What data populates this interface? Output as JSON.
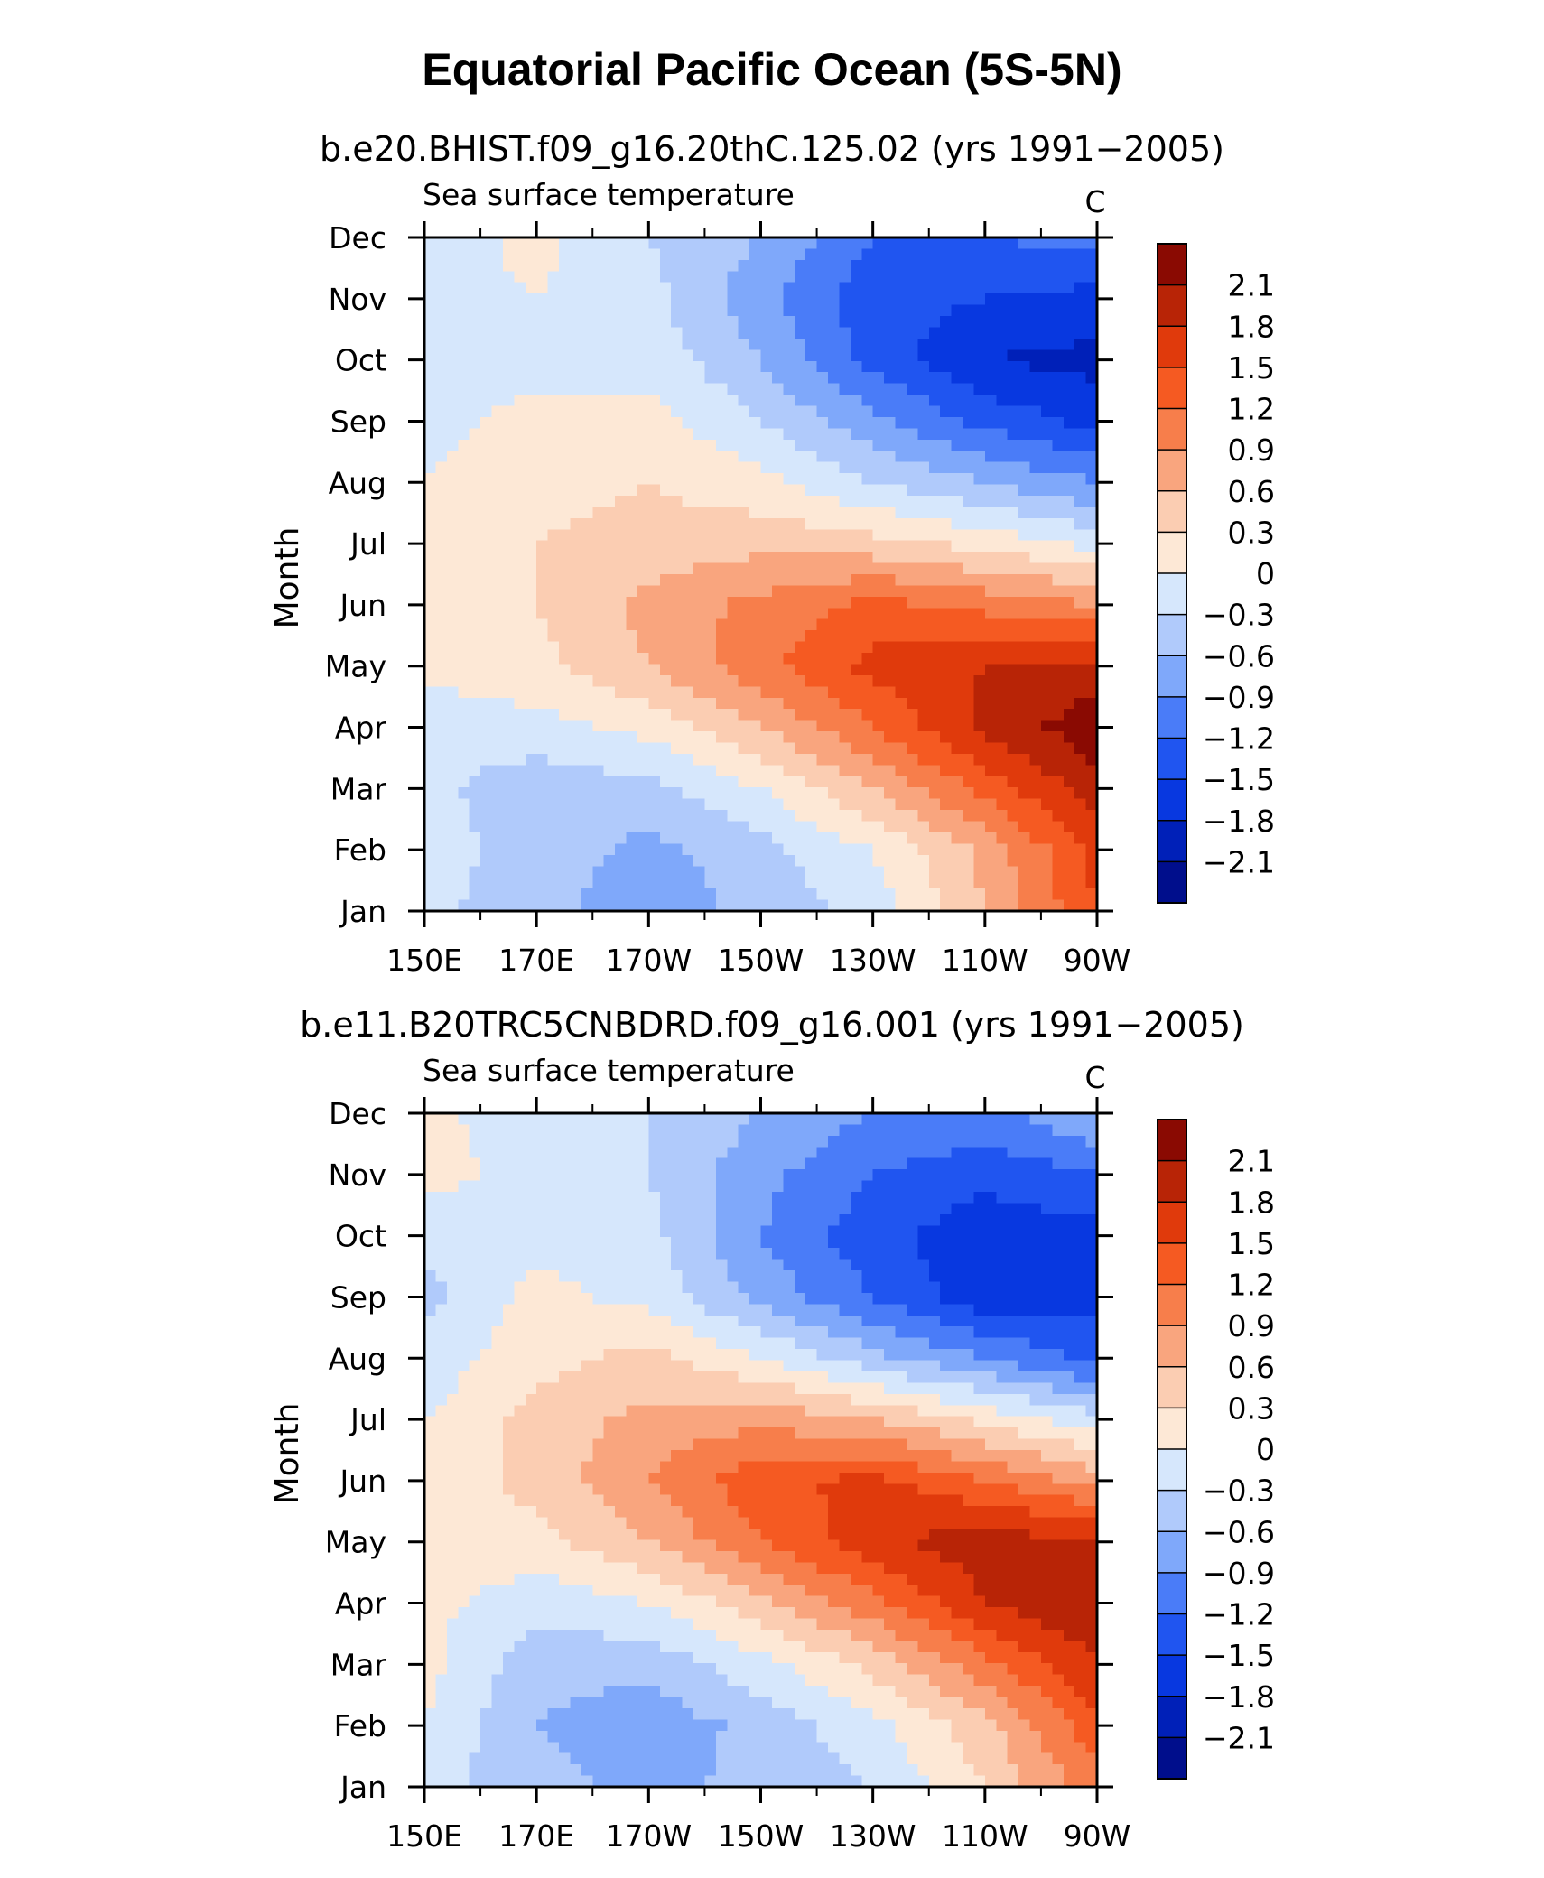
{
  "title": "Equatorial Pacific Ocean (5S-5N)",
  "colors": {
    "levels": [
      -2.4,
      -2.1,
      -1.8,
      -1.5,
      -1.2,
      -0.9,
      -0.6,
      -0.3,
      0,
      0.3,
      0.6,
      0.9,
      1.2,
      1.5,
      1.8,
      2.1,
      2.4
    ],
    "fills": [
      "#000e8c",
      "#0020b8",
      "#0838e0",
      "#2055f0",
      "#4a7cf8",
      "#7fa8fa",
      "#b0cafb",
      "#d6e7fc",
      "#fde8d6",
      "#fbcdb2",
      "#f9a57e",
      "#f77e4b",
      "#f55a22",
      "#e03a0c",
      "#b82406",
      "#8a0a02"
    ]
  },
  "chart_data": [
    {
      "type": "heatmap",
      "title": "b.e20.BHIST.f09_g16.20thC.125.02 (yrs 1991−2005)",
      "left_label": "Sea surface temperature",
      "units": "C",
      "ylabel": "Month",
      "xlabel": "",
      "x": [
        "150E",
        "170E",
        "170W",
        "150W",
        "130W",
        "110W",
        "90W"
      ],
      "y": [
        "Jan",
        "Feb",
        "Mar",
        "Apr",
        "May",
        "Jun",
        "Jul",
        "Aug",
        "Sep",
        "Oct",
        "Nov",
        "Dec"
      ],
      "colorbar_labels": [
        "2.1",
        "1.8",
        "1.5",
        "1.2",
        "0.9",
        "0.6",
        "0.3",
        "0",
        "−0.3",
        "−0.6",
        "−0.9",
        "−1.2",
        "−1.5",
        "−1.8",
        "−2.1"
      ],
      "values": [
        [
          -0.2,
          -0.5,
          -0.8,
          -0.5,
          -0.2,
          0.6,
          1.5
        ],
        [
          -0.2,
          -0.4,
          -0.7,
          -0.4,
          0.0,
          0.7,
          1.6
        ],
        [
          -0.2,
          -0.5,
          -0.4,
          0.0,
          0.6,
          1.3,
          2.0
        ],
        [
          -0.2,
          -0.1,
          0.1,
          0.6,
          1.2,
          1.9,
          2.3
        ],
        [
          0.1,
          0.2,
          0.6,
          1.1,
          1.6,
          1.8,
          1.9
        ],
        [
          0.2,
          0.3,
          0.7,
          1.0,
          1.3,
          1.1,
          0.9
        ],
        [
          0.1,
          0.3,
          0.4,
          0.5,
          0.4,
          0.2,
          -0.1
        ],
        [
          0.0,
          0.2,
          0.3,
          0.1,
          -0.3,
          -0.6,
          -0.9
        ],
        [
          -0.1,
          0.1,
          0.1,
          -0.3,
          -0.8,
          -1.3,
          -1.6
        ],
        [
          -0.2,
          -0.1,
          -0.1,
          -0.6,
          -1.3,
          -1.8,
          -1.9
        ],
        [
          -0.1,
          0.0,
          -0.2,
          -0.8,
          -1.4,
          -1.5,
          -1.6
        ],
        [
          -0.2,
          0.1,
          -0.3,
          -0.6,
          -1.2,
          -1.2,
          -1.1
        ]
      ]
    },
    {
      "type": "heatmap",
      "title": "b.e11.B20TRC5CNBDRD.f09_g16.001 (yrs 1991−2005)",
      "left_label": "Sea surface temperature",
      "units": "C",
      "ylabel": "Month",
      "xlabel": "",
      "x": [
        "150E",
        "170E",
        "170W",
        "150W",
        "130W",
        "110W",
        "90W"
      ],
      "y": [
        "Jan",
        "Feb",
        "Mar",
        "Apr",
        "May",
        "Jun",
        "Jul",
        "Aug",
        "Sep",
        "Oct",
        "Nov",
        "Dec"
      ],
      "colorbar_labels": [
        "2.1",
        "1.8",
        "1.5",
        "1.2",
        "0.9",
        "0.6",
        "0.3",
        "0",
        "−0.3",
        "−0.6",
        "−0.9",
        "−1.2",
        "−1.5",
        "−1.8",
        "−2.1"
      ],
      "values": [
        [
          -0.2,
          -0.5,
          -0.7,
          -0.5,
          -0.3,
          0.3,
          1.1
        ],
        [
          0.0,
          -0.6,
          -0.8,
          -0.5,
          -0.1,
          0.5,
          1.4
        ],
        [
          0.1,
          -0.5,
          -0.5,
          -0.1,
          0.4,
          1.1,
          1.8
        ],
        [
          0.1,
          -0.2,
          0.0,
          0.5,
          1.1,
          1.8,
          2.1
        ],
        [
          0.2,
          0.2,
          0.6,
          1.2,
          1.7,
          2.0,
          1.8
        ],
        [
          0.1,
          0.4,
          0.9,
          1.4,
          1.6,
          1.2,
          0.8
        ],
        [
          0.0,
          0.4,
          0.7,
          0.8,
          0.6,
          0.2,
          -0.2
        ],
        [
          -0.2,
          0.2,
          0.4,
          0.0,
          -0.5,
          -0.9,
          -1.3
        ],
        [
          -0.4,
          0.1,
          -0.1,
          -0.7,
          -1.2,
          -1.7,
          -1.6
        ],
        [
          -0.2,
          -0.1,
          -0.2,
          -0.9,
          -1.4,
          -1.7,
          -1.6
        ],
        [
          0.1,
          -0.1,
          -0.3,
          -0.8,
          -1.2,
          -1.4,
          -1.2
        ],
        [
          0.1,
          -0.2,
          -0.3,
          -0.6,
          -0.9,
          -1.0,
          -0.6
        ]
      ]
    }
  ]
}
